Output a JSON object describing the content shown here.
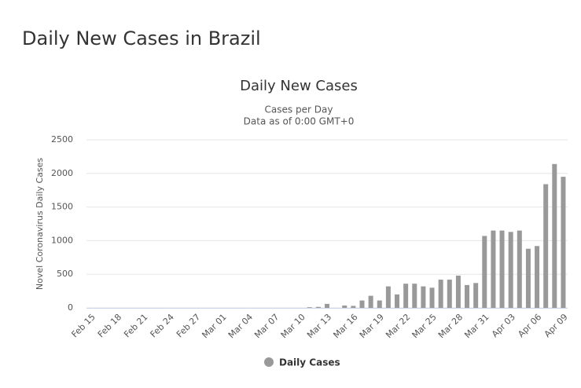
{
  "page_title": "Daily New Cases in Brazil",
  "chart_data": {
    "type": "bar",
    "title": "Daily New Cases",
    "subtitle": [
      "Cases per Day",
      "Data as of 0:00 GMT+0"
    ],
    "y_label": "Novel Coronavirus Daily Cases",
    "categories": [
      "Feb 15",
      null,
      null,
      "Feb 18",
      null,
      null,
      "Feb 21",
      null,
      null,
      "Feb 24",
      null,
      null,
      "Feb 27",
      null,
      null,
      "Mar 01",
      null,
      null,
      "Mar 04",
      null,
      null,
      "Mar 07",
      null,
      null,
      "Mar 10",
      null,
      null,
      "Mar 13",
      null,
      null,
      "Mar 16",
      null,
      null,
      "Mar 19",
      null,
      null,
      "Mar 22",
      null,
      null,
      "Mar 25",
      null,
      null,
      "Mar 28",
      null,
      null,
      "Mar 31",
      null,
      null,
      "Apr 03",
      null,
      null,
      "Apr 06",
      null,
      null,
      "Apr 09"
    ],
    "series": [
      {
        "name": "Daily Cases",
        "color": "#999999",
        "values": [
          0,
          0,
          0,
          0,
          0,
          0,
          0,
          0,
          0,
          0,
          0,
          0,
          0,
          0,
          0,
          0,
          0,
          0,
          0,
          0,
          0,
          0,
          0,
          0,
          0,
          10,
          15,
          60,
          0,
          35,
          30,
          110,
          180,
          110,
          320,
          200,
          360,
          360,
          320,
          300,
          420,
          420,
          480,
          340,
          370,
          1070,
          1150,
          1150,
          1130,
          1150,
          880,
          920,
          1840,
          2140,
          1950
        ]
      }
    ],
    "ylim": [
      0,
      2500
    ],
    "yticks": [
      0,
      500,
      1000,
      1500,
      2000,
      2500
    ],
    "grid": true,
    "legend": "bottom"
  }
}
